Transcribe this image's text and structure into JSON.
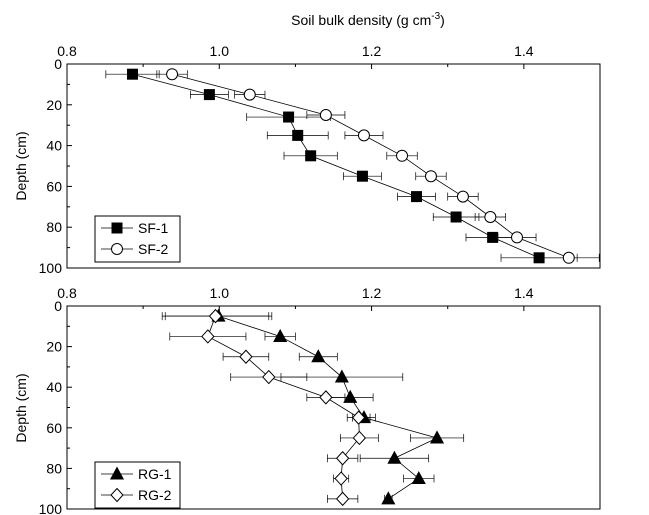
{
  "chart_data": {
    "type": "scatter",
    "title": "",
    "xlabel": "Soil bulk density (g cm-3)",
    "x_unit_base": "Soil bulk density (g cm",
    "x_unit_exponent": "-3",
    "x_unit_close": ")",
    "ylabel": "Depth (cm)",
    "xlim": [
      0.8,
      1.5
    ],
    "ylim": [
      0,
      100
    ],
    "y_inverted": true,
    "x_ticks": [
      "0.8",
      "1.0",
      "1.2",
      "1.4"
    ],
    "y_ticks": [
      "0",
      "20",
      "40",
      "60",
      "80",
      "100"
    ],
    "panels": [
      {
        "legend_position": "bottom-left",
        "series": [
          {
            "name": "SF-1",
            "marker": "filled-square",
            "x": [
              0.886,
              0.987,
              1.091,
              1.103,
              1.12,
              1.188,
              1.259,
              1.311,
              1.359,
              1.42
            ],
            "y": [
              5,
              15,
              26,
              35,
              45,
              55,
              65,
              75,
              85,
              95
            ],
            "xerr": [
              0.035,
              0.025,
              0.055,
              0.04,
              0.035,
              0.025,
              0.025,
              0.03,
              0.035,
              0.05
            ]
          },
          {
            "name": "SF-2",
            "marker": "open-circle",
            "x": [
              0.938,
              1.04,
              1.14,
              1.19,
              1.24,
              1.278,
              1.32,
              1.356,
              1.391,
              1.459
            ],
            "y": [
              5,
              15,
              25,
              35,
              45,
              55,
              65,
              75,
              85,
              95
            ],
            "xerr": [
              0.02,
              0.02,
              0.025,
              0.025,
              0.02,
              0.02,
              0.02,
              0.02,
              0.025,
              0.04
            ]
          }
        ]
      },
      {
        "legend_position": "bottom-left",
        "series": [
          {
            "name": "RG-1",
            "marker": "filled-triangle",
            "x": [
              0.999,
              1.08,
              1.13,
              1.161,
              1.172,
              1.19,
              1.286,
              1.23,
              1.262,
              1.222
            ],
            "y": [
              5,
              15,
              25,
              35,
              45,
              55,
              65,
              75,
              85,
              95
            ],
            "xerr": [
              0.07,
              0.02,
              0.025,
              0.08,
              0.03,
              0.015,
              0.035,
              0.045,
              0.02,
              0.005
            ]
          },
          {
            "name": "RG-2",
            "marker": "open-diamond",
            "x": [
              0.995,
              0.985,
              1.035,
              1.065,
              1.14,
              1.183,
              1.184,
              1.162,
              1.16,
              1.162
            ],
            "y": [
              5,
              15,
              25,
              35,
              45,
              55,
              65,
              75,
              85,
              95
            ],
            "xerr": [
              0.07,
              0.05,
              0.03,
              0.05,
              0.025,
              0.015,
              0.025,
              0.02,
              0.01,
              0.02
            ]
          }
        ]
      }
    ]
  }
}
